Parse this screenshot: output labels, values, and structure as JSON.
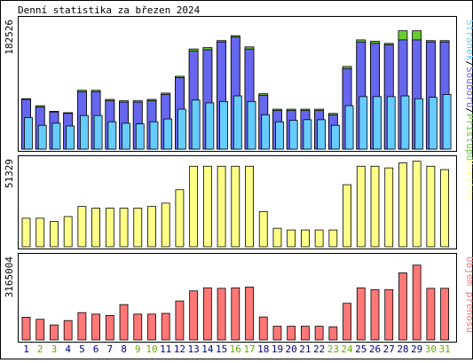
{
  "title": "Denní statistika za březen 2024",
  "colors": {
    "hits": "#66cc33",
    "files": "#6666ee",
    "pages": "#66ccff",
    "visits": "#ffff88",
    "kbytes": "#ff7777",
    "weekend_label": "#66aa00",
    "weekday_label": "#000080",
    "frame": "#000000",
    "background": "#ffffff"
  },
  "chart_data": [
    {
      "type": "bar",
      "panel": "top",
      "ymax": 182526,
      "ytick_label": "182526",
      "legend": [
        "Stránek",
        "Souborů",
        "Přístupů"
      ],
      "categories": [
        "1",
        "2",
        "3",
        "4",
        "5",
        "6",
        "7",
        "8",
        "9",
        "10",
        "11",
        "12",
        "13",
        "14",
        "15",
        "16",
        "17",
        "18",
        "19",
        "20",
        "21",
        "22",
        "23",
        "24",
        "25",
        "26",
        "27",
        "28",
        "29",
        "30",
        "31"
      ],
      "weekend_days": [
        "2",
        "3",
        "9",
        "10",
        "16",
        "17",
        "23",
        "24",
        "30",
        "31"
      ],
      "series": [
        {
          "name": "Přístupů",
          "values": [
            72000,
            62000,
            54000,
            52000,
            84000,
            84000,
            71000,
            69000,
            69000,
            71000,
            80000,
            104000,
            143000,
            145000,
            155000,
            162000,
            146000,
            79000,
            57000,
            57000,
            57000,
            57000,
            51000,
            118000,
            156000,
            154000,
            151000,
            169000,
            169000,
            155000,
            155000
          ]
        },
        {
          "name": "Souborů",
          "values": [
            71000,
            60000,
            53000,
            51000,
            82000,
            82000,
            69000,
            67000,
            67000,
            69000,
            78000,
            102000,
            140000,
            142000,
            153000,
            160000,
            143000,
            77000,
            55000,
            55000,
            55000,
            55000,
            49000,
            115000,
            153000,
            151000,
            149000,
            156000,
            156000,
            153000,
            153000
          ]
        },
        {
          "name": "Stránek",
          "values": [
            45000,
            34000,
            37000,
            33000,
            48000,
            48000,
            39000,
            37000,
            36000,
            39000,
            43000,
            57000,
            70000,
            66000,
            68000,
            76000,
            68000,
            49000,
            39000,
            41000,
            42000,
            42000,
            34000,
            62000,
            75000,
            75000,
            75000,
            76000,
            72000,
            74000,
            78000
          ]
        }
      ]
    },
    {
      "type": "bar",
      "panel": "middle",
      "ymax": 51329,
      "ytick_label": "51329",
      "legend": [
        "Návštěv"
      ],
      "categories": [
        "1",
        "2",
        "3",
        "4",
        "5",
        "6",
        "7",
        "8",
        "9",
        "10",
        "11",
        "12",
        "13",
        "14",
        "15",
        "16",
        "17",
        "18",
        "19",
        "20",
        "21",
        "22",
        "23",
        "24",
        "25",
        "26",
        "27",
        "28",
        "29",
        "30",
        "31"
      ],
      "series": [
        {
          "name": "Návštěv",
          "values": [
            17000,
            17000,
            15000,
            18000,
            24000,
            23000,
            23000,
            23000,
            23000,
            24000,
            26000,
            34000,
            48000,
            48000,
            48000,
            48000,
            48000,
            21000,
            11000,
            10000,
            10000,
            10000,
            10000,
            37000,
            48000,
            48000,
            47000,
            50000,
            51000,
            48000,
            46000
          ]
        }
      ]
    },
    {
      "type": "bar",
      "panel": "bottom",
      "ymax": 3165004,
      "ytick_label": "3165004",
      "legend": [
        "Objem přenosu"
      ],
      "categories": [
        "1",
        "2",
        "3",
        "4",
        "5",
        "6",
        "7",
        "8",
        "9",
        "10",
        "11",
        "12",
        "13",
        "14",
        "15",
        "16",
        "17",
        "18",
        "19",
        "20",
        "21",
        "22",
        "23",
        "24",
        "25",
        "26",
        "27",
        "28",
        "29",
        "30",
        "31"
      ],
      "series": [
        {
          "name": "Objem přenosu",
          "values": [
            880000,
            800000,
            580000,
            750000,
            1060000,
            1000000,
            950000,
            1370000,
            1000000,
            1000000,
            1030000,
            1510000,
            1900000,
            2020000,
            2000000,
            2020000,
            2050000,
            890000,
            530000,
            530000,
            530000,
            530000,
            510000,
            1420000,
            2020000,
            1950000,
            1950000,
            2600000,
            2900000,
            2000000,
            2000000
          ]
        }
      ]
    }
  ]
}
